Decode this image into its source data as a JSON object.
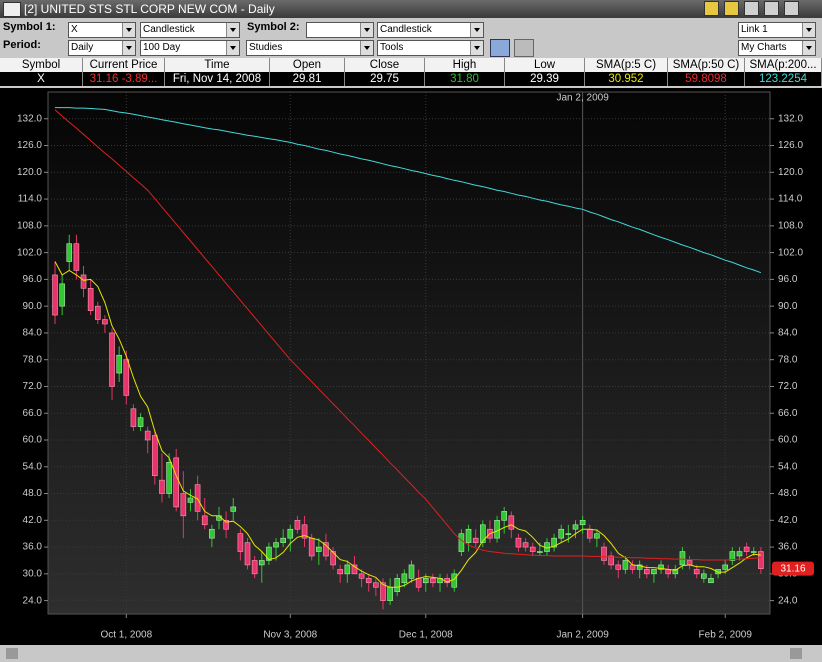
{
  "window": {
    "title": "[2] UNITED STS STL CORP NEW COM - Daily"
  },
  "toolbar": {
    "symbol1_label": "Symbol 1:",
    "symbol1": "X",
    "chart_type1": "Candlestick",
    "symbol2_label": "Symbol 2:",
    "chart_type2": "Candlestick",
    "link": "Link 1",
    "period_label": "Period:",
    "period": "Daily",
    "range": "100 Day",
    "studies": "Studies",
    "tools": "Tools",
    "my_charts": "My Charts"
  },
  "quote_table": {
    "headers": [
      "Symbol",
      "Current Price",
      "Time",
      "Open",
      "Close",
      "High",
      "Low",
      "SMA(p:5 C)",
      "SMA(p:50 C)",
      "SMA(p:200..."
    ],
    "row": [
      "X",
      "31.16 -3.89...",
      "Fri, Nov 14, 2008",
      "29.81",
      "29.75",
      "31.80",
      "29.39",
      "30.952",
      "59.8098",
      "123.2254"
    ]
  },
  "chart_data": {
    "type": "candlestick",
    "categories": [
      null,
      null,
      null,
      null,
      null,
      null,
      null,
      null,
      null,
      null,
      "Oct 1, 2008",
      null,
      null,
      null,
      null,
      null,
      null,
      null,
      null,
      null,
      null,
      null,
      null,
      null,
      null,
      null,
      null,
      null,
      null,
      null,
      null,
      null,
      null,
      "Nov 3, 2008",
      null,
      null,
      null,
      null,
      null,
      null,
      null,
      null,
      null,
      null,
      null,
      null,
      null,
      null,
      null,
      null,
      null,
      null,
      "Dec 1, 2008",
      null,
      null,
      null,
      null,
      null,
      null,
      null,
      null,
      null,
      null,
      null,
      null,
      null,
      null,
      null,
      null,
      null,
      null,
      null,
      null,
      null,
      "Jan 2, 2009",
      null,
      null,
      null,
      null,
      null,
      null,
      null,
      null,
      null,
      null,
      null,
      null,
      null,
      null,
      null,
      null,
      null,
      null,
      null,
      "Feb 2, 2009",
      null,
      null,
      null,
      null,
      null
    ],
    "open": [
      97,
      90,
      100,
      104,
      97,
      94,
      90,
      87,
      84,
      75,
      78,
      67,
      63,
      62,
      61,
      51,
      48,
      56,
      48,
      46,
      50,
      43,
      38,
      42,
      42,
      44,
      39,
      37,
      33,
      32,
      33,
      36,
      37,
      38,
      42,
      41,
      38,
      35,
      37,
      35,
      31,
      30,
      32,
      30,
      29,
      28,
      28,
      24,
      26,
      28,
      29,
      29,
      28,
      29,
      28,
      29,
      27,
      35,
      37,
      38,
      37,
      40,
      38,
      42,
      43,
      38,
      37,
      36,
      35,
      35,
      36,
      38,
      39,
      40,
      41,
      40,
      38,
      36,
      34,
      32,
      31,
      32,
      31,
      31,
      30,
      31,
      31,
      30,
      32,
      33,
      31,
      29,
      28,
      30,
      31,
      33,
      34,
      36,
      35,
      35
    ],
    "high": [
      100,
      97,
      106,
      106,
      99,
      96,
      91,
      88,
      85,
      81,
      80,
      68,
      66,
      63,
      62,
      57,
      57,
      58,
      53,
      49,
      52,
      47,
      41,
      45,
      44,
      47,
      40,
      38,
      34,
      35,
      37,
      38,
      40,
      41,
      43,
      43,
      39,
      38,
      39,
      36,
      32,
      33,
      34,
      31,
      30,
      29,
      29,
      29,
      30,
      31,
      33,
      31,
      30,
      30,
      30,
      30,
      31,
      40,
      41,
      40,
      42,
      42,
      43,
      45,
      44,
      39,
      38,
      37,
      37,
      38,
      39,
      41,
      41,
      42,
      43,
      41,
      40,
      37,
      35,
      33,
      34,
      33,
      33,
      32,
      31,
      33,
      32,
      32,
      36,
      34,
      32,
      31,
      30,
      31,
      33,
      36,
      36,
      37,
      36,
      36
    ],
    "low": [
      86,
      88,
      98,
      96,
      92,
      88,
      86,
      84,
      69,
      73,
      68,
      62,
      62,
      57,
      50,
      46,
      47,
      44,
      38,
      44,
      42,
      40,
      36,
      40,
      38,
      42,
      33,
      31,
      29,
      28,
      32,
      33,
      36,
      35,
      39,
      36,
      33,
      32,
      33,
      31,
      28,
      28,
      30,
      27,
      26,
      25,
      22,
      23,
      25,
      27,
      28,
      26,
      26,
      27,
      26,
      27,
      26,
      34,
      35,
      36,
      36,
      37,
      37,
      39,
      38,
      35,
      35,
      34,
      34,
      34,
      35,
      37,
      37,
      38,
      39,
      37,
      36,
      32,
      31,
      29,
      30,
      30,
      29,
      29,
      28,
      30,
      29,
      29,
      31,
      31,
      29,
      28,
      28,
      29,
      30,
      32,
      33,
      34,
      34,
      30
    ],
    "close": [
      88,
      95,
      104,
      98,
      94,
      89,
      87,
      86,
      72,
      79,
      70,
      63,
      65,
      60,
      52,
      48,
      55,
      45,
      43,
      47,
      44,
      41,
      40,
      43,
      40,
      45,
      35,
      32,
      30,
      33,
      36,
      37,
      38,
      40,
      40,
      38,
      34,
      36,
      34,
      32,
      30,
      32,
      30,
      29,
      28,
      27,
      24,
      27,
      29,
      30,
      32,
      27,
      29,
      28,
      29,
      28,
      30,
      39,
      40,
      37,
      41,
      38,
      42,
      44,
      40,
      36,
      36,
      35,
      35,
      37,
      38,
      40,
      39,
      41,
      42,
      38,
      39,
      33,
      32,
      31,
      33,
      31,
      32,
      30,
      31,
      32,
      30,
      31,
      35,
      32,
      30,
      30,
      29,
      31,
      32,
      35,
      35,
      35,
      35,
      31.16
    ],
    "up_color": "#33c633",
    "down_color": "#e8346a",
    "lines": [
      {
        "color": "#e6e600",
        "values": [
          100,
          97,
          98,
          97,
          95.8,
          96,
          94.4,
          90.8,
          85.6,
          82.6,
          78.8,
          74,
          69.8,
          67.4,
          62,
          57.6,
          56,
          52,
          48.6,
          47.6,
          46.8,
          44,
          43,
          43,
          41.6,
          41.8,
          40.6,
          39,
          36.4,
          35,
          33.2,
          33.6,
          34.8,
          36.8,
          38.2,
          38.6,
          38,
          37.6,
          36.4,
          34.8,
          33.2,
          32.8,
          31.6,
          30.6,
          29.8,
          29.2,
          27.6,
          27,
          27,
          27.4,
          28.4,
          29,
          29.4,
          29.2,
          29,
          28.2,
          28.8,
          30.8,
          33.2,
          34.8,
          37.4,
          39,
          39.6,
          40.4,
          41,
          40,
          39.6,
          38.2,
          36.4,
          35.8,
          36.2,
          37,
          37.8,
          39,
          40,
          40,
          39.8,
          38.6,
          36.8,
          34.6,
          33.6,
          32,
          31.8,
          31.4,
          31.4,
          31.2,
          31,
          30.8,
          31.8,
          32,
          31.6,
          31.6,
          31.2,
          30.4,
          30.4,
          31.4,
          32.4,
          33.6,
          34.4,
          34.2
        ]
      },
      {
        "color": "#e02020",
        "values": [
          134,
          132.6,
          131.2,
          129.9,
          128.5,
          127.1,
          125.7,
          124.3,
          123,
          121.6,
          120.2,
          118.8,
          117.4,
          116,
          114.1,
          112.2,
          110.3,
          108.4,
          106.5,
          104.6,
          102.7,
          100.8,
          98.9,
          97,
          95.1,
          93.2,
          91.3,
          89.4,
          87.5,
          85.6,
          83.7,
          81.8,
          79.9,
          78,
          76.4,
          74.7,
          73.1,
          71.4,
          69.8,
          68.1,
          66.5,
          64.8,
          63.2,
          61.5,
          59.9,
          58.2,
          56.6,
          54.9,
          53.3,
          51.6,
          50,
          48.3,
          46.7,
          44.8,
          42.9,
          41,
          39,
          37.5,
          36.5,
          35.8,
          35.3,
          35,
          34.8,
          34.6,
          34.5,
          34.4,
          34.3,
          34.2,
          34.1,
          34.1,
          34,
          34,
          34,
          34,
          34,
          33.9,
          33.9,
          33.8,
          33.8,
          33.7,
          33.7,
          33.6,
          33.6,
          33.5,
          33.5,
          33.4,
          33.4,
          33.3,
          33.3,
          33.2,
          33.2,
          33.1,
          33.1,
          33.1,
          33.1,
          33.2,
          33.3,
          33.4,
          33.5,
          33.6
        ]
      },
      {
        "color": "#40d8d8",
        "values": [
          134.5,
          134.5,
          134.5,
          134.4,
          134.4,
          134.3,
          134.2,
          134.1,
          133.8,
          133.5,
          133.3,
          133,
          132.7,
          132.4,
          132.1,
          131.8,
          131.5,
          131.2,
          130.9,
          130.6,
          130.3,
          130,
          129.7,
          129.5,
          129.2,
          128.9,
          128.6,
          128.3,
          128.1,
          127.8,
          127.5,
          127.3,
          127,
          126.7,
          126.3,
          126,
          125.6,
          125.2,
          124.9,
          124.5,
          124.1,
          123.8,
          123.4,
          123,
          122.7,
          122.3,
          121.9,
          121.5,
          121.2,
          120.8,
          120.4,
          120.1,
          119.7,
          119.3,
          119,
          118.6,
          118.2,
          117.9,
          117.5,
          117.1,
          116.8,
          116.4,
          116,
          115.7,
          115.3,
          114.9,
          114.6,
          114.2,
          113.8,
          113.5,
          113.1,
          112.7,
          112.4,
          112,
          111.7,
          111.1,
          110.6,
          110,
          109.4,
          108.9,
          108.3,
          107.7,
          107.2,
          106.6,
          106,
          105.4,
          104.9,
          104.3,
          103.7,
          103.2,
          102.6,
          102,
          101.5,
          100.9,
          100.3,
          99.8,
          99.2,
          98.6,
          98.1,
          97.5
        ]
      }
    ],
    "crosshair_index": 74,
    "ylim": [
      21,
      138
    ],
    "yticks": [
      {
        "value": 24,
        "label": "24.0"
      },
      {
        "value": 30,
        "label": "30.0"
      },
      {
        "value": 36,
        "label": "36.0"
      },
      {
        "value": 42,
        "label": "42.0"
      },
      {
        "value": 48,
        "label": "48.0"
      },
      {
        "value": 54,
        "label": "54.0"
      },
      {
        "value": 60,
        "label": "60.0"
      },
      {
        "value": 66,
        "label": "66.0"
      },
      {
        "value": 72,
        "label": "72.0"
      },
      {
        "value": 78,
        "label": "78.0"
      },
      {
        "value": 84,
        "label": "84.0"
      },
      {
        "value": 90,
        "label": "90.0"
      },
      {
        "value": 96,
        "label": "96.0"
      },
      {
        "value": 102,
        "label": "102.0"
      },
      {
        "value": 108,
        "label": "108.0"
      },
      {
        "value": 114,
        "label": "114.0"
      },
      {
        "value": 120,
        "label": "120.0"
      },
      {
        "value": 126,
        "label": "126.0"
      },
      {
        "value": 132,
        "label": "132.0"
      }
    ],
    "grid": true
  }
}
